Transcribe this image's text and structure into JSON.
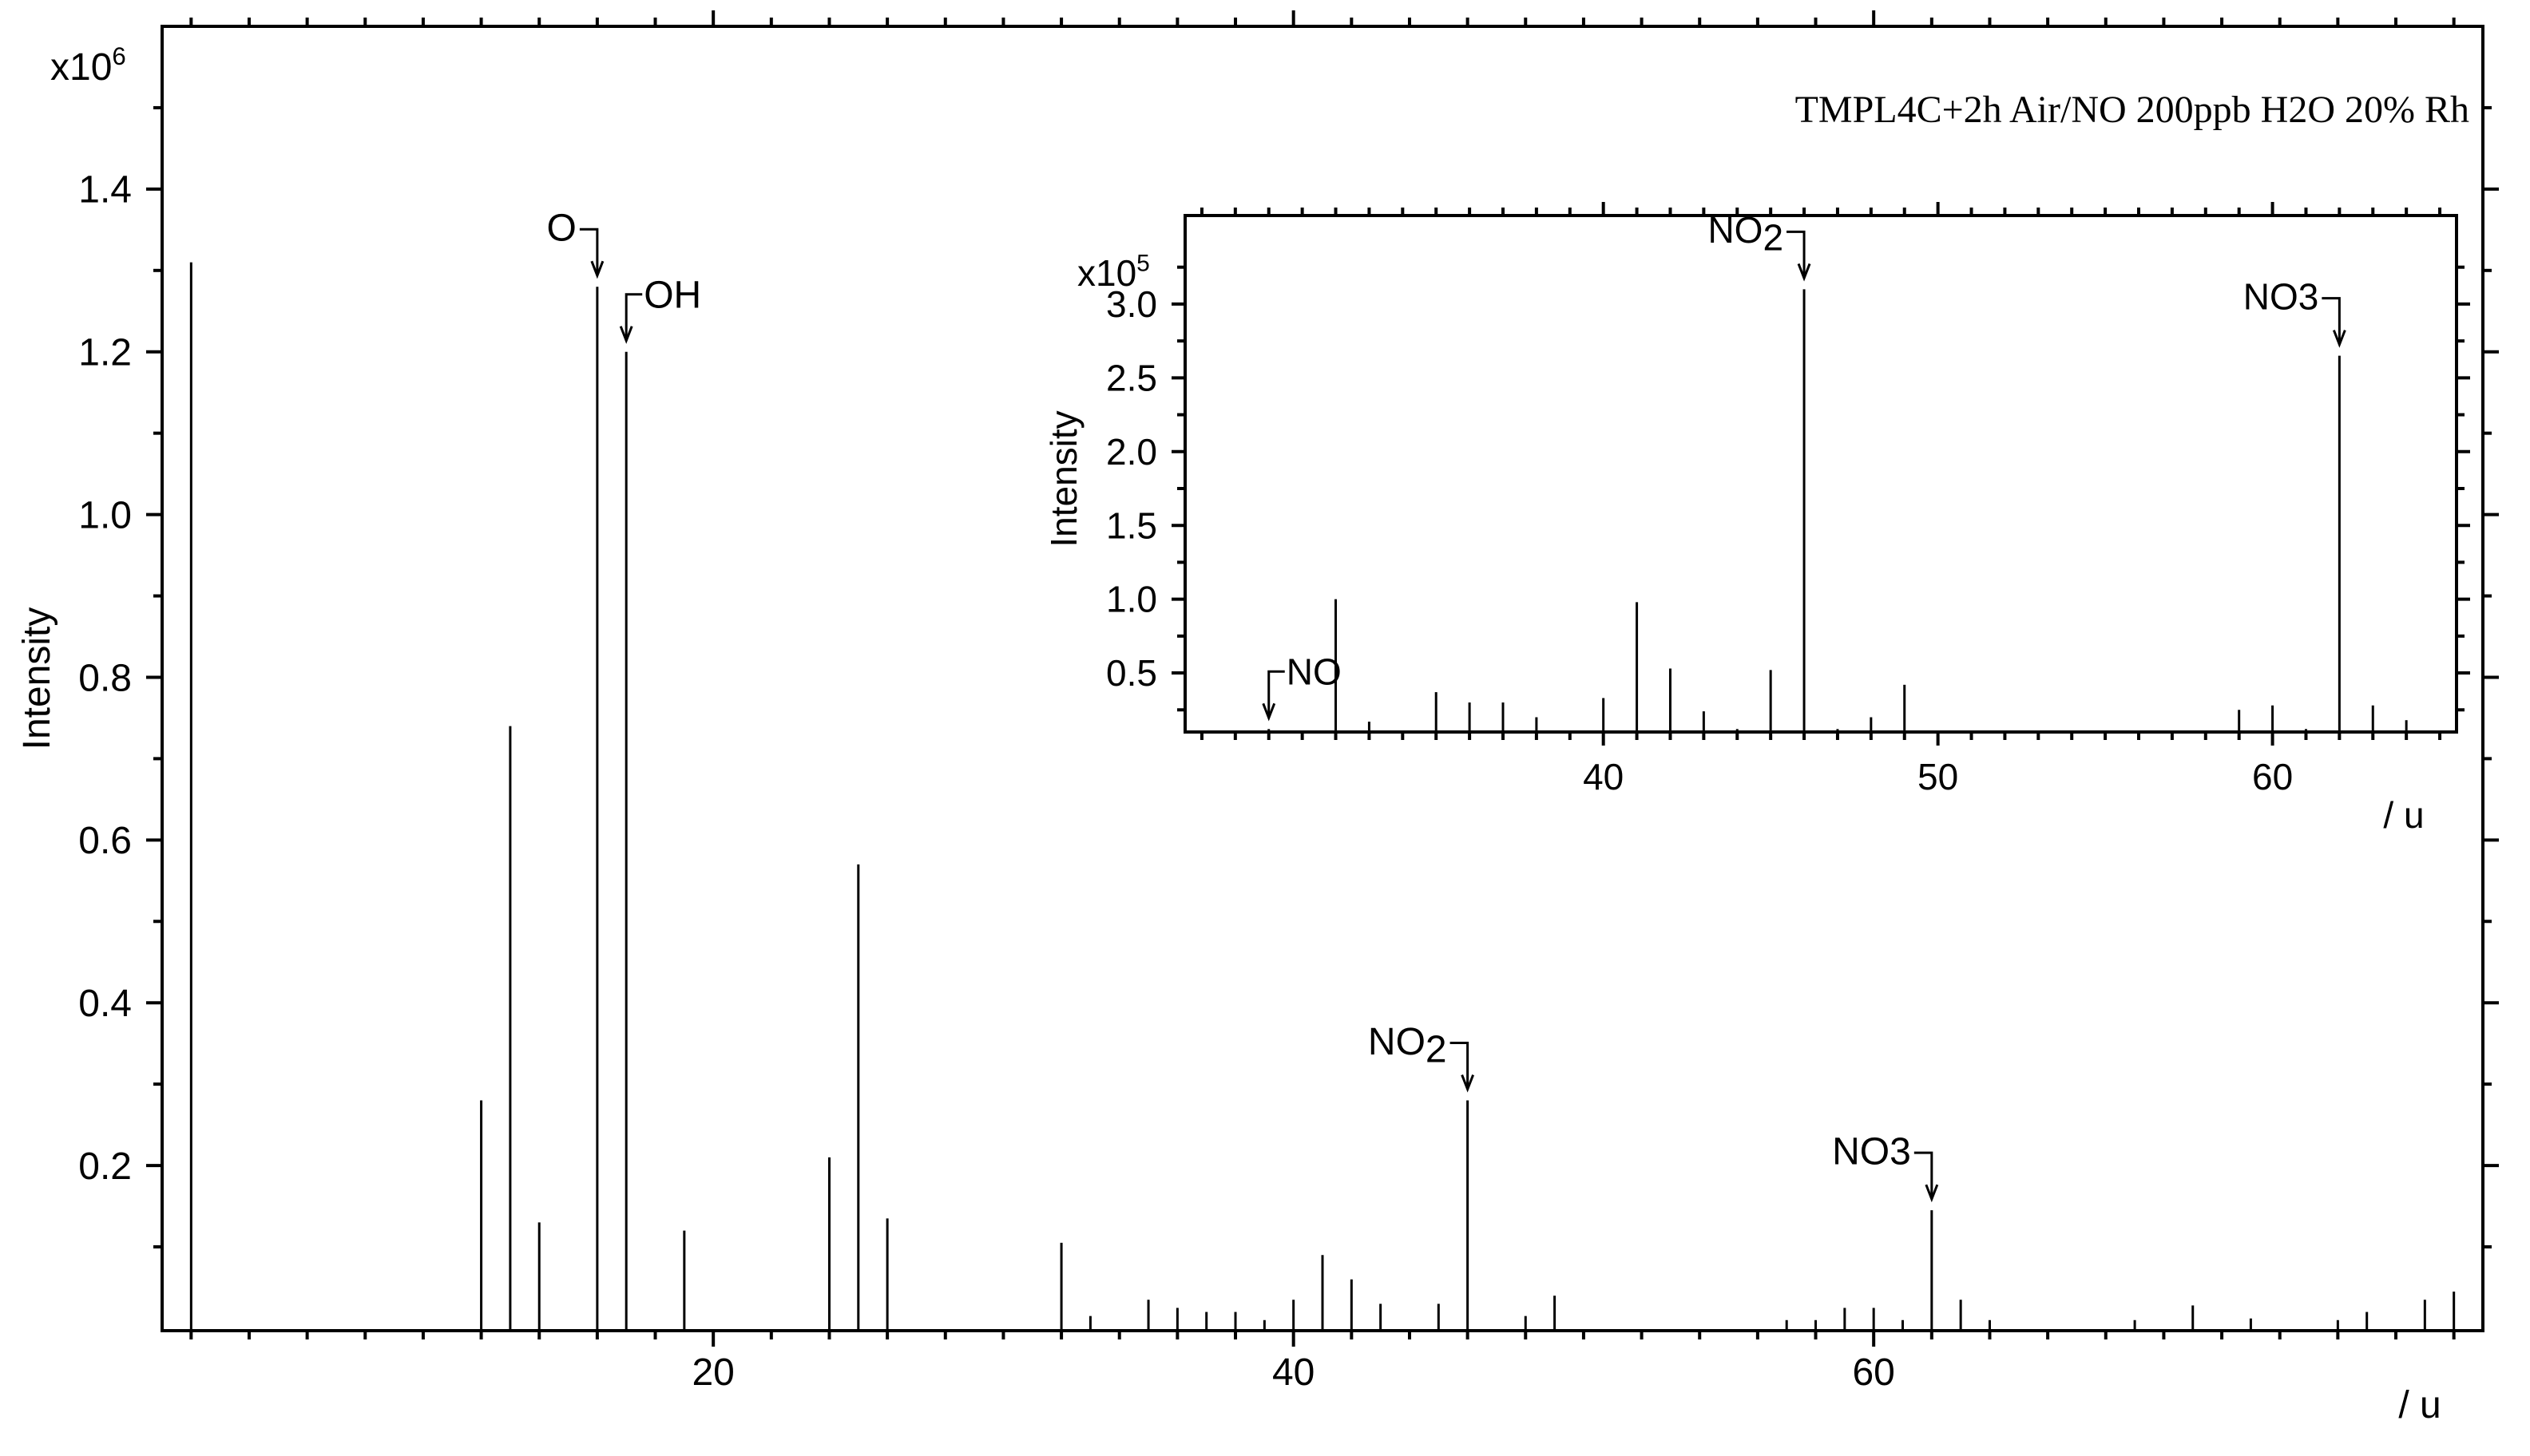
{
  "chart_data": [
    {
      "type": "bar",
      "title": "TMPL4C+2h Air/NO 200ppb H2O 20% Rh",
      "xlabel": "/ u",
      "ylabel": "Intensity",
      "y_multiplier": "x10",
      "y_multiplier_exp": "6",
      "xlim": [
        1,
        81
      ],
      "ylim": [
        -0.003,
        1.6
      ],
      "x_major_ticks": [
        20,
        40,
        60
      ],
      "x_minor_step": 2,
      "y_ticks": [
        0.2,
        0.4,
        0.6,
        0.8,
        1.0,
        1.2,
        1.4
      ],
      "y_tick_labels": [
        "0.2",
        "0.4",
        "0.6",
        "0.8",
        "1.0",
        "1.2",
        "1.4"
      ],
      "x_tick_labels": [
        "20",
        "40",
        "60"
      ],
      "peaks": [
        {
          "x": 2,
          "y": 1.31
        },
        {
          "x": 12,
          "y": 0.28
        },
        {
          "x": 13,
          "y": 0.74
        },
        {
          "x": 14,
          "y": 0.13
        },
        {
          "x": 16,
          "y": 1.28
        },
        {
          "x": 17,
          "y": 1.2
        },
        {
          "x": 19,
          "y": 0.12
        },
        {
          "x": 24,
          "y": 0.21
        },
        {
          "x": 25,
          "y": 0.57
        },
        {
          "x": 26,
          "y": 0.135
        },
        {
          "x": 32,
          "y": 0.105
        },
        {
          "x": 33,
          "y": 0.015
        },
        {
          "x": 35,
          "y": 0.035
        },
        {
          "x": 36,
          "y": 0.025
        },
        {
          "x": 37,
          "y": 0.02
        },
        {
          "x": 38,
          "y": 0.02
        },
        {
          "x": 39,
          "y": 0.01
        },
        {
          "x": 40,
          "y": 0.035
        },
        {
          "x": 41,
          "y": 0.09
        },
        {
          "x": 42,
          "y": 0.06
        },
        {
          "x": 43,
          "y": 0.03
        },
        {
          "x": 45,
          "y": 0.03
        },
        {
          "x": 46,
          "y": 0.28
        },
        {
          "x": 48,
          "y": 0.015
        },
        {
          "x": 49,
          "y": 0.04
        },
        {
          "x": 57,
          "y": 0.01
        },
        {
          "x": 58,
          "y": 0.01
        },
        {
          "x": 59,
          "y": 0.025
        },
        {
          "x": 60,
          "y": 0.025
        },
        {
          "x": 61,
          "y": 0.01
        },
        {
          "x": 62,
          "y": 0.145
        },
        {
          "x": 63,
          "y": 0.035
        },
        {
          "x": 64,
          "y": 0.01
        },
        {
          "x": 69,
          "y": 0.01
        },
        {
          "x": 71,
          "y": 0.028
        },
        {
          "x": 73,
          "y": 0.012
        },
        {
          "x": 76,
          "y": 0.01
        },
        {
          "x": 77,
          "y": 0.02
        },
        {
          "x": 79,
          "y": 0.035
        },
        {
          "x": 80,
          "y": 0.045
        }
      ],
      "annotations": [
        {
          "text": "O",
          "x": 16,
          "y": 1.28,
          "style": "left"
        },
        {
          "text": "OH",
          "x": 17,
          "y": 1.2,
          "style": "right"
        },
        {
          "text": "NO",
          "sub": "2",
          "x": 46,
          "y": 0.28,
          "style": "left"
        },
        {
          "text": "NO3",
          "x": 62,
          "y": 0.145,
          "style": "left"
        }
      ]
    },
    {
      "type": "bar",
      "inset": true,
      "xlabel": "/ u",
      "ylabel": "Intensity",
      "y_multiplier": "x10",
      "y_multiplier_exp": "5",
      "xlim": [
        27.5,
        65.5
      ],
      "ylim": [
        0.1,
        3.6
      ],
      "x_major_ticks": [
        40,
        50,
        60
      ],
      "x_minor_step": 1,
      "y_ticks": [
        0.5,
        1.0,
        1.5,
        2.0,
        2.5,
        3.0
      ],
      "y_tick_labels": [
        "0.5",
        "1.0",
        "1.5",
        "2.0",
        "2.5",
        "3.0"
      ],
      "x_tick_labels": [
        "40",
        "50",
        "60"
      ],
      "peaks": [
        {
          "x": 30,
          "y": 0.12
        },
        {
          "x": 32,
          "y": 1.0
        },
        {
          "x": 33,
          "y": 0.17
        },
        {
          "x": 35,
          "y": 0.37
        },
        {
          "x": 36,
          "y": 0.3
        },
        {
          "x": 37,
          "y": 0.3
        },
        {
          "x": 38,
          "y": 0.2
        },
        {
          "x": 39,
          "y": 0.1
        },
        {
          "x": 40,
          "y": 0.33
        },
        {
          "x": 41,
          "y": 0.98
        },
        {
          "x": 42,
          "y": 0.53
        },
        {
          "x": 43,
          "y": 0.24
        },
        {
          "x": 44,
          "y": 0.12
        },
        {
          "x": 45,
          "y": 0.52
        },
        {
          "x": 46,
          "y": 3.1
        },
        {
          "x": 47,
          "y": 0.12
        },
        {
          "x": 48,
          "y": 0.2
        },
        {
          "x": 49,
          "y": 0.42
        },
        {
          "x": 57,
          "y": 0.1
        },
        {
          "x": 58,
          "y": 0.1
        },
        {
          "x": 59,
          "y": 0.25
        },
        {
          "x": 60,
          "y": 0.28
        },
        {
          "x": 61,
          "y": 0.12
        },
        {
          "x": 62,
          "y": 2.65
        },
        {
          "x": 63,
          "y": 0.28
        },
        {
          "x": 64,
          "y": 0.18
        }
      ],
      "annotations": [
        {
          "text": "NO",
          "x": 30,
          "y": 0.12,
          "style": "right"
        },
        {
          "text": "NO",
          "sub": "2",
          "x": 46,
          "y": 3.1,
          "style": "left"
        },
        {
          "text": "NO3",
          "x": 62,
          "y": 2.65,
          "style": "left"
        }
      ]
    }
  ]
}
